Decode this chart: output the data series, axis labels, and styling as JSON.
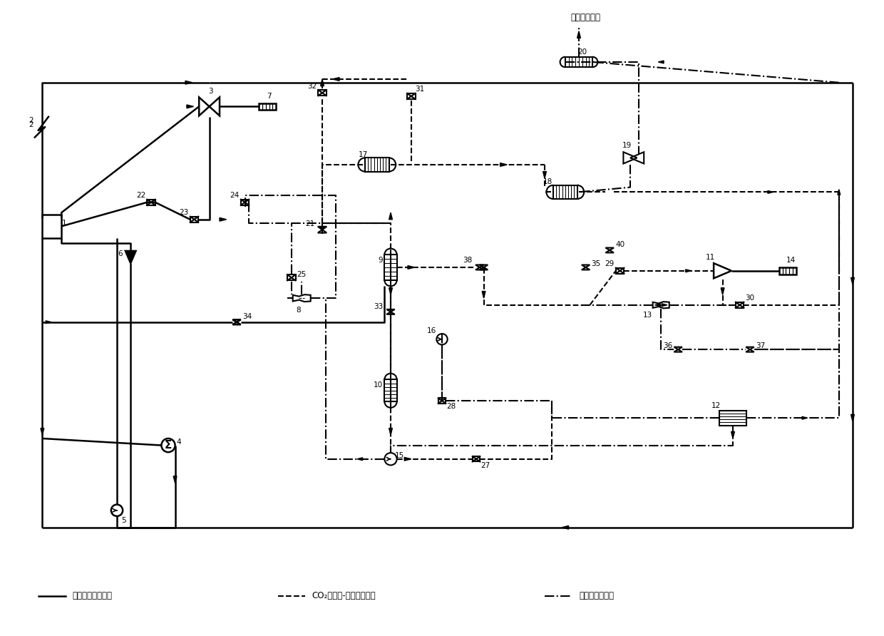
{
  "bg_color": "#ffffff",
  "line_color": "#000000",
  "lw_solid": 1.8,
  "lw_dash": 1.5,
  "lw_dashdot": 1.5,
  "legend": [
    {
      "x": 3,
      "label": "朗肯循环发电装置",
      "ls": "-"
    },
    {
      "x": 38,
      "label": "CO₂跨临界-噴射发电装置",
      "ls": "--"
    },
    {
      "x": 77,
      "label": "噴射式热泵装置",
      "ls": "-."
    }
  ],
  "top_label": "加热厂区用水"
}
